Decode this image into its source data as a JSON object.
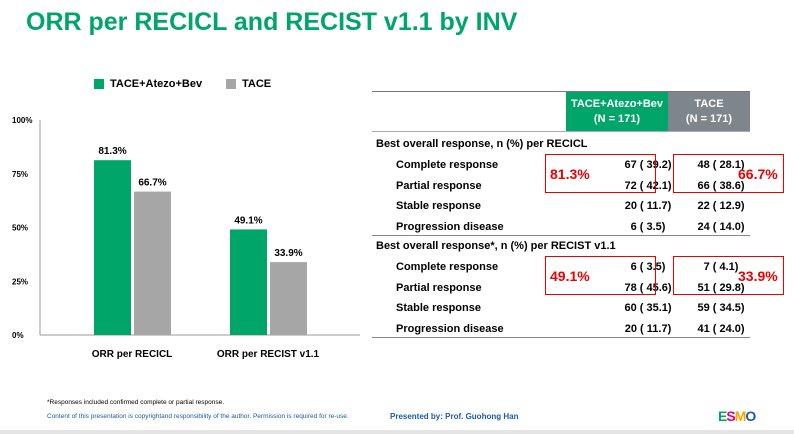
{
  "title": "ORR per RECICL and RECIST v1.1 by INV",
  "chart_data": {
    "type": "bar",
    "categories": [
      "ORR per RECICL",
      "ORR per RECIST v1.1"
    ],
    "series": [
      {
        "name": "TACE+Atezo+Bev",
        "values": [
          81.3,
          49.1
        ],
        "labels": [
          "81.3%",
          "49.1%"
        ],
        "color": "#00a56a"
      },
      {
        "name": "TACE",
        "values": [
          66.7,
          33.9
        ],
        "labels": [
          "66.7%",
          "33.9%"
        ],
        "color": "#a6a6a6"
      }
    ],
    "yticks": [
      "0%",
      "25%",
      "50%",
      "75%",
      "100%"
    ],
    "ylim": [
      0,
      100
    ],
    "grid": false,
    "legend": "top"
  },
  "table": {
    "headers": [
      {
        "name": "TACE+Atezo+Bev",
        "n": "(N = 171)",
        "color": "#00a56a"
      },
      {
        "name": "TACE",
        "n": "(N = 171)",
        "color": "#7f868b"
      }
    ],
    "sections": [
      {
        "title": "Best overall response, n (%) per RECICL",
        "orr": [
          "81.3%",
          "66.7%"
        ],
        "rows": [
          {
            "label": "Complete response",
            "a": "67 ( 39.2)",
            "b": "48 ( 28.1)"
          },
          {
            "label": "Partial response",
            "a": "72 ( 42.1)",
            "b": "66 ( 38.6)"
          },
          {
            "label": "Stable response",
            "a": "20 ( 11.7)",
            "b": "22 ( 12.9)"
          },
          {
            "label": "Progression disease",
            "a": "6 ( 3.5)",
            "b": "24 ( 14.0)"
          }
        ]
      },
      {
        "title": "Best overall response*, n (%) per RECIST v1.1",
        "orr": [
          "49.1%",
          "33.9%"
        ],
        "rows": [
          {
            "label": "Complete response",
            "a": "6 ( 3.5)",
            "b": "7 ( 4.1)"
          },
          {
            "label": "Partial response",
            "a": "78 ( 45.6)",
            "b": "51 ( 29.8)"
          },
          {
            "label": "Stable response",
            "a": "60 ( 35.1)",
            "b": "59 ( 34.5)"
          },
          {
            "label": "Progression disease",
            "a": "20 ( 11.7)",
            "b": "41 ( 24.0)"
          }
        ]
      }
    ]
  },
  "footer": {
    "note": "*Responses included confirmed complete or partial response.",
    "copyright": "Content of this presentation is copyrightand responsibility of the author. Permission is required for re-use.",
    "presenter": "Presented by: Prof. Guohong Han",
    "logo": "ESMO"
  }
}
